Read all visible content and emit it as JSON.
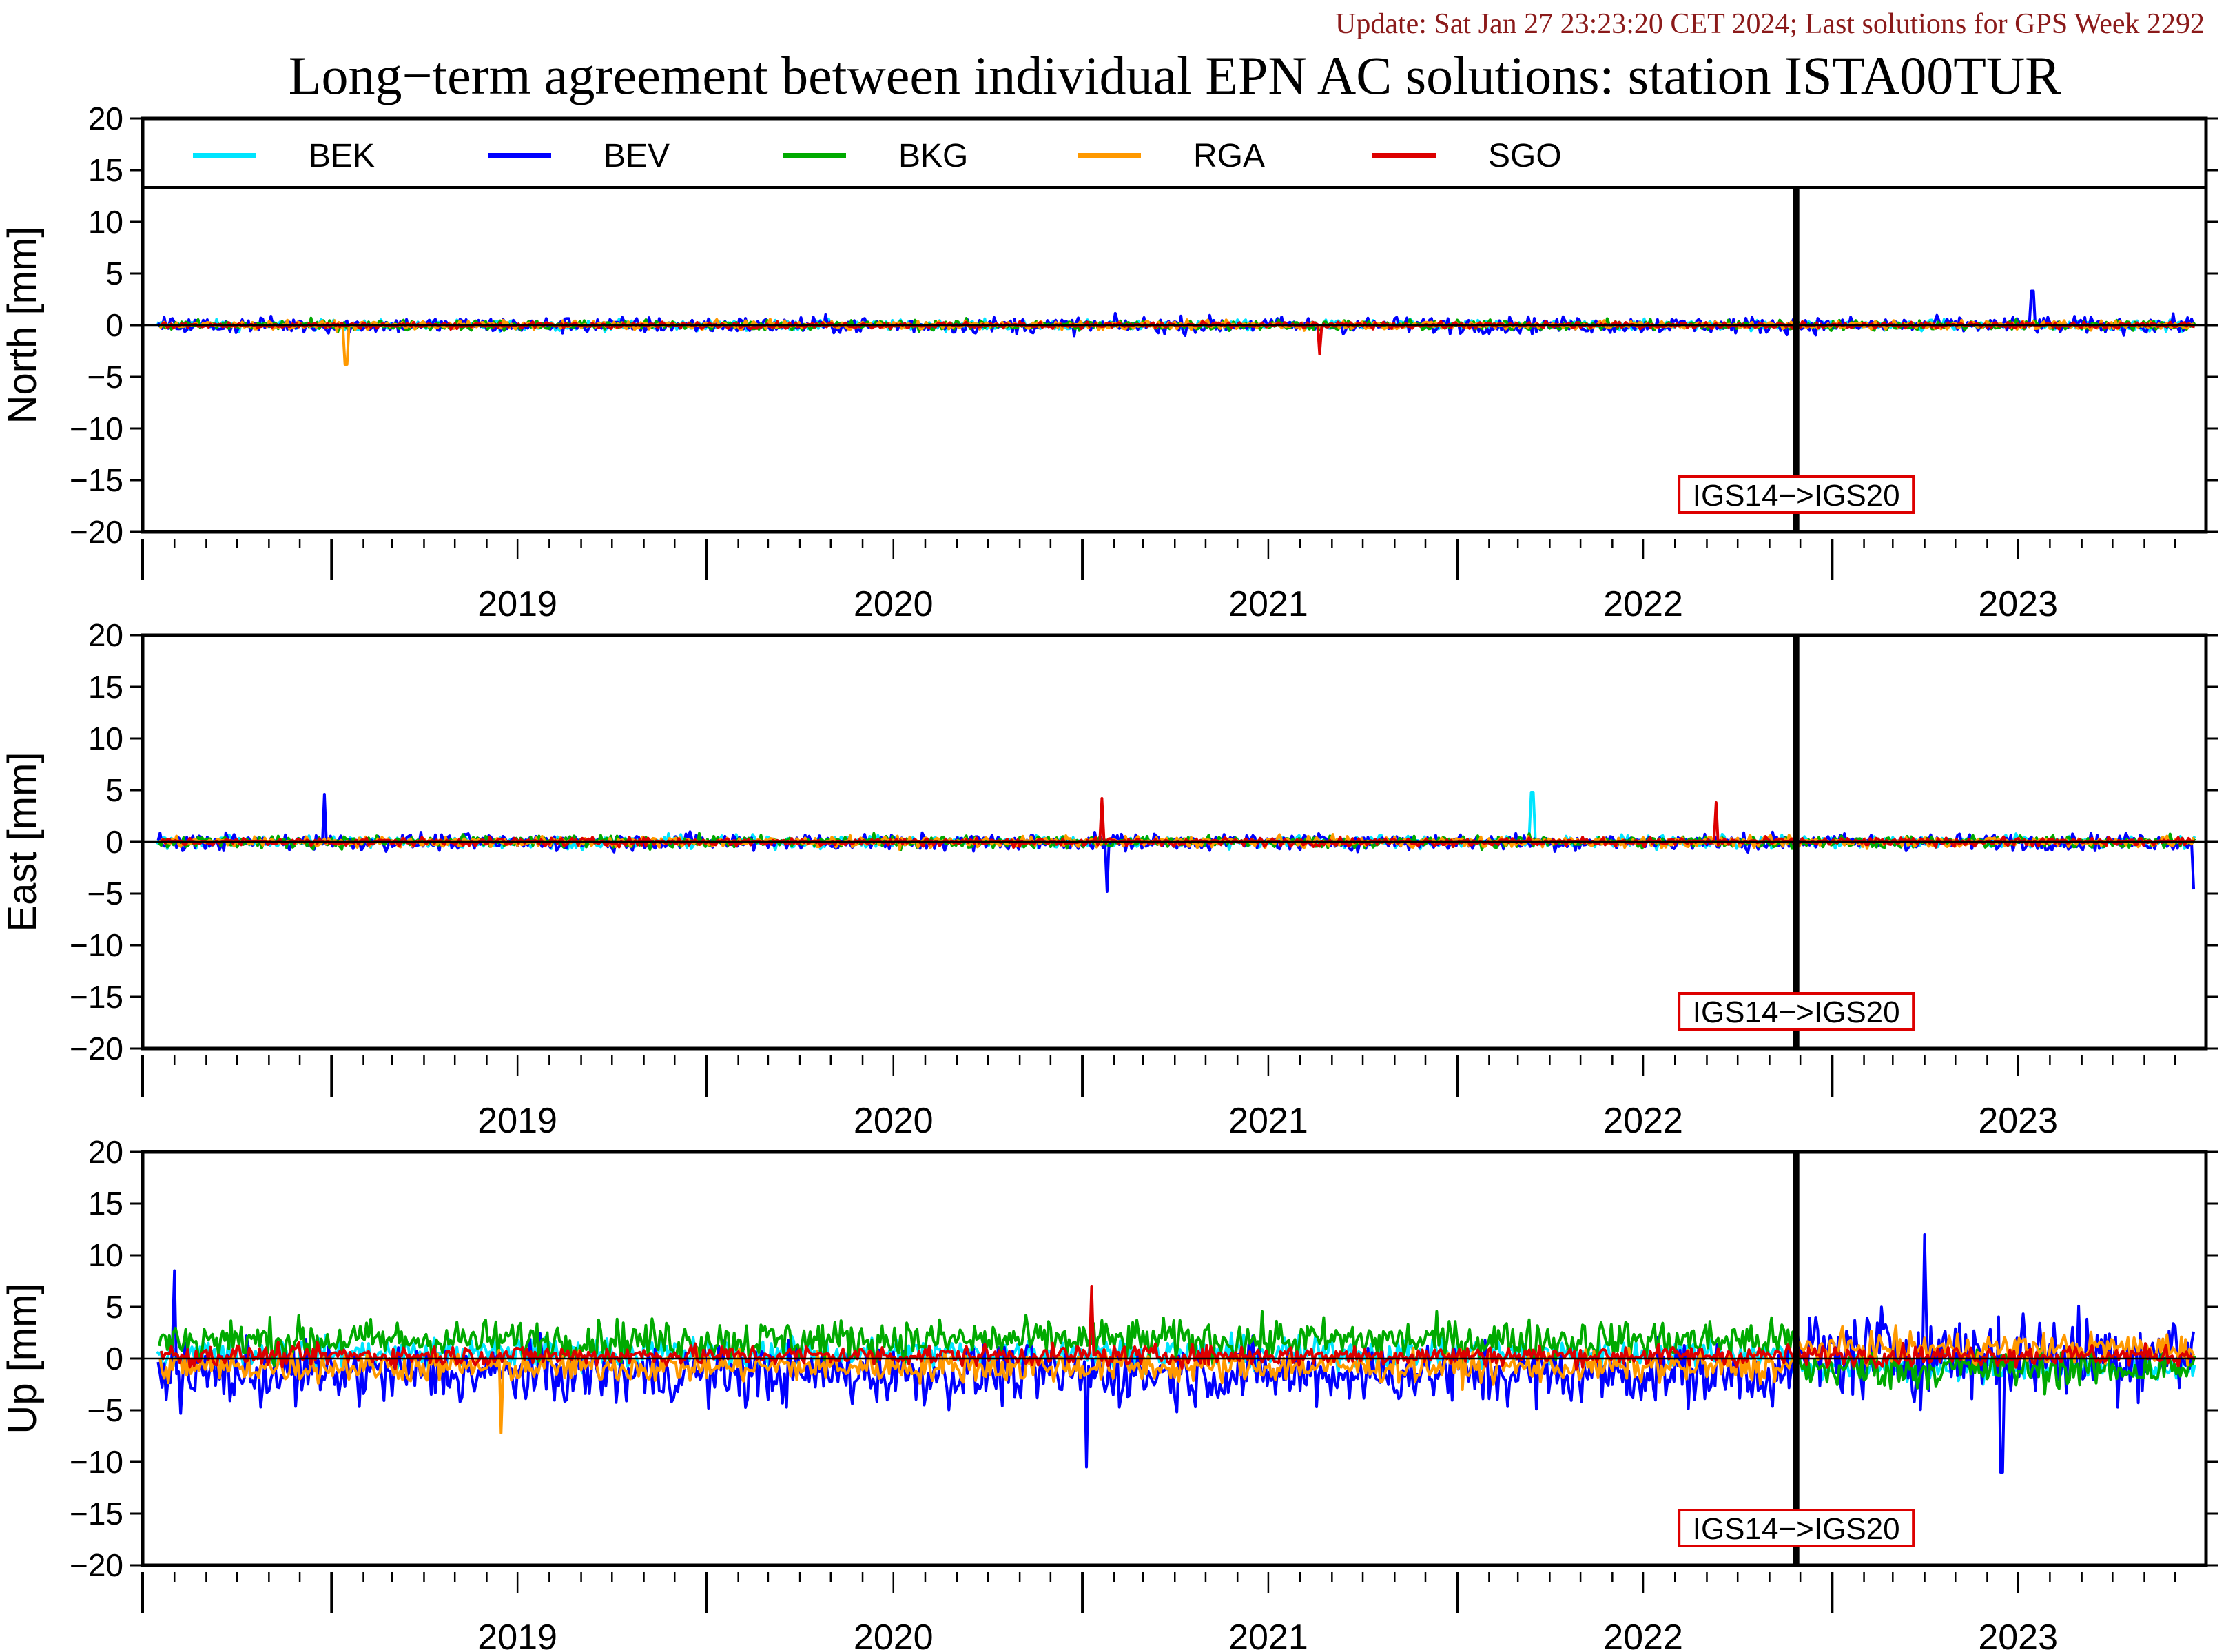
{
  "header": {
    "update_text": "Update: Sat Jan 27 23:23:20 CET 2024; Last solutions for GPS Week 2292",
    "title": "Long−term agreement between individual EPN AC solutions: station ISTA00TUR",
    "update_color": "#8b1a1a"
  },
  "legend": {
    "items": [
      {
        "name": "BEK",
        "color": "#00e5ff"
      },
      {
        "name": "BEV",
        "color": "#0000ff"
      },
      {
        "name": "BKG",
        "color": "#00aa00"
      },
      {
        "name": "RGA",
        "color": "#ff9900"
      },
      {
        "name": "SGO",
        "color": "#dd0000"
      }
    ]
  },
  "marker": {
    "label": "IGS14−>IGS20",
    "date": "2022-11-27",
    "box_color": "#dd0000"
  },
  "chart_data": [
    {
      "type": "line",
      "ylabel": "North [mm]",
      "ylim": [
        -20,
        20
      ],
      "yticks": [
        20,
        15,
        10,
        5,
        0,
        -5,
        -10,
        -15,
        -20
      ],
      "xlim": [
        "2018-07-01",
        "2023-12-31"
      ],
      "xtick_labels": [
        "2019",
        "2020",
        "2021",
        "2022",
        "2023"
      ],
      "zero_line": true,
      "approx_amplitude_mm": {
        "BEK": 0.5,
        "BEV": 0.8,
        "BKG": 0.5,
        "RGA": 0.4,
        "SGO": 0.3
      },
      "notable_values": [
        {
          "series": "RGA",
          "date": "2019-01-15",
          "value": -3.8
        },
        {
          "series": "SGO",
          "date": "2021-08-20",
          "value": -2.8
        },
        {
          "series": "BEV",
          "date": "2023-07-15",
          "value": 3.3
        }
      ]
    },
    {
      "type": "line",
      "ylabel": "East [mm]",
      "ylim": [
        -20,
        20
      ],
      "yticks": [
        20,
        15,
        10,
        5,
        0,
        -5,
        -10,
        -15,
        -20
      ],
      "xlim": [
        "2018-07-01",
        "2023-12-31"
      ],
      "xtick_labels": [
        "2019",
        "2020",
        "2021",
        "2022",
        "2023"
      ],
      "zero_line": true,
      "approx_amplitude_mm": {
        "BEK": 0.6,
        "BEV": 0.8,
        "BKG": 0.6,
        "RGA": 0.5,
        "SGO": 0.4
      },
      "notable_values": [
        {
          "series": "BEV",
          "date": "2018-12-25",
          "value": 4.6
        },
        {
          "series": "BEV",
          "date": "2021-01-25",
          "value": -4.8
        },
        {
          "series": "SGO",
          "date": "2021-01-20",
          "value": 4.2
        },
        {
          "series": "BEK",
          "date": "2022-03-15",
          "value": 4.8
        },
        {
          "series": "SGO",
          "date": "2022-09-10",
          "value": 3.8
        },
        {
          "series": "BEV",
          "date": "2023-12-20",
          "value": -4.6
        }
      ]
    },
    {
      "type": "line",
      "ylabel": "Up [mm]",
      "ylim": [
        -20,
        20
      ],
      "yticks": [
        20,
        15,
        10,
        5,
        0,
        -5,
        -10,
        -15,
        -20
      ],
      "xlim": [
        "2018-07-01",
        "2023-12-31"
      ],
      "xtick_labels": [
        "2019",
        "2020",
        "2021",
        "2022",
        "2023"
      ],
      "zero_line": true,
      "approx_amplitude_mm": {
        "BEK": 1.5,
        "BEV": 3.0,
        "BKG": 2.0,
        "RGA": 1.5,
        "SGO": 1.0
      },
      "notable_values": [
        {
          "series": "BEV",
          "date": "2018-08-01",
          "value": 8.5
        },
        {
          "series": "RGA",
          "date": "2019-06-15",
          "value": -7.2
        },
        {
          "series": "SGO",
          "date": "2021-01-10",
          "value": 7.0
        },
        {
          "series": "BEV",
          "date": "2021-01-05",
          "value": -10.5
        },
        {
          "series": "BEV",
          "date": "2023-04-01",
          "value": 12.0
        },
        {
          "series": "BEV",
          "date": "2023-06-15",
          "value": -11.0
        }
      ]
    }
  ]
}
